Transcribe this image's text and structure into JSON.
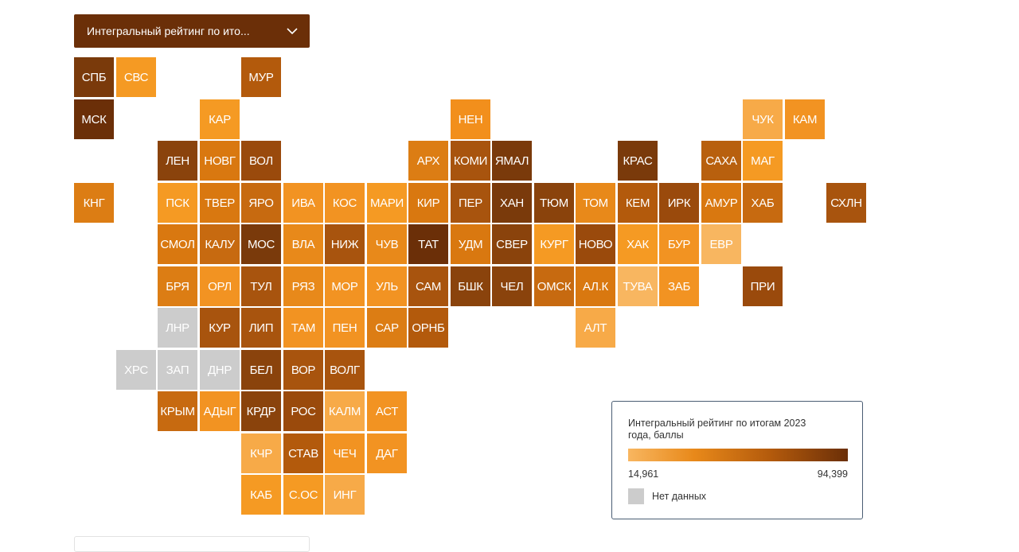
{
  "dropdown": {
    "label": "Интегральный рейтинг по ито..."
  },
  "legend": {
    "title": "Интегральный рейтинг по итогам 2023 года, баллы",
    "min": "14,961",
    "max": "94,399",
    "no_data": "Нет данных",
    "colors": [
      "#f8b660",
      "#e8891a",
      "#b35a0c",
      "#6b2f08"
    ],
    "no_data_color": "#cccccc"
  },
  "map": {
    "regions": [
      {
        "code": "СПБ",
        "row": 0,
        "col": 0,
        "color": "#7a3a0b"
      },
      {
        "code": "СВС",
        "row": 0,
        "col": 1,
        "color": "#f59a23"
      },
      {
        "code": "МУР",
        "row": 0,
        "col": 4,
        "color": "#b35a0c"
      },
      {
        "code": "МСК",
        "row": 1,
        "col": 0,
        "color": "#6b2f08"
      },
      {
        "code": "КАР",
        "row": 1,
        "col": 3,
        "color": "#f59a23"
      },
      {
        "code": "НЕН",
        "row": 1,
        "col": 9,
        "color": "#f28f1c"
      },
      {
        "code": "ЧУК",
        "row": 1,
        "col": 16,
        "color": "#f7aa48"
      },
      {
        "code": "КАМ",
        "row": 1,
        "col": 17,
        "color": "#f29322"
      },
      {
        "code": "ЛЕН",
        "row": 2,
        "col": 2,
        "color": "#8a430c"
      },
      {
        "code": "НОВГ",
        "row": 2,
        "col": 3,
        "color": "#d97810"
      },
      {
        "code": "ВОЛ",
        "row": 2,
        "col": 4,
        "color": "#9a4a0c"
      },
      {
        "code": "АРХ",
        "row": 2,
        "col": 8,
        "color": "#dc7d14"
      },
      {
        "code": "КОМИ",
        "row": 2,
        "col": 9,
        "color": "#a8540e"
      },
      {
        "code": "ЯМАЛ",
        "row": 2,
        "col": 10,
        "color": "#7a3a0b"
      },
      {
        "code": "КРАС",
        "row": 2,
        "col": 13,
        "color": "#7a3a0b"
      },
      {
        "code": "САХА",
        "row": 2,
        "col": 15,
        "color": "#b8600e"
      },
      {
        "code": "МАГ",
        "row": 2,
        "col": 16,
        "color": "#f59a23"
      },
      {
        "code": "КНГ",
        "row": 3,
        "col": 0,
        "color": "#dc7d14"
      },
      {
        "code": "ПСК",
        "row": 3,
        "col": 2,
        "color": "#f59a23"
      },
      {
        "code": "ТВЕР",
        "row": 3,
        "col": 3,
        "color": "#d97810"
      },
      {
        "code": "ЯРО",
        "row": 3,
        "col": 4,
        "color": "#c76a10"
      },
      {
        "code": "ИВА",
        "row": 3,
        "col": 5,
        "color": "#f29322"
      },
      {
        "code": "КОС",
        "row": 3,
        "col": 6,
        "color": "#f29322"
      },
      {
        "code": "МАРИ",
        "row": 3,
        "col": 7,
        "color": "#f59a23"
      },
      {
        "code": "КИР",
        "row": 3,
        "col": 8,
        "color": "#d97810"
      },
      {
        "code": "ПЕР",
        "row": 3,
        "col": 9,
        "color": "#a8540e"
      },
      {
        "code": "ХАН",
        "row": 3,
        "col": 10,
        "color": "#7a3a0b"
      },
      {
        "code": "ТЮМ",
        "row": 3,
        "col": 11,
        "color": "#8a430c"
      },
      {
        "code": "ТОМ",
        "row": 3,
        "col": 12,
        "color": "#e8891a"
      },
      {
        "code": "КЕМ",
        "row": 3,
        "col": 13,
        "color": "#b35a0c"
      },
      {
        "code": "ИРК",
        "row": 3,
        "col": 14,
        "color": "#9a4a0c"
      },
      {
        "code": "АМУР",
        "row": 3,
        "col": 15,
        "color": "#d97810"
      },
      {
        "code": "ХАБ",
        "row": 3,
        "col": 16,
        "color": "#c76a10"
      },
      {
        "code": "СХЛН",
        "row": 3,
        "col": 18,
        "color": "#a8540e"
      },
      {
        "code": "СМОЛ",
        "row": 4,
        "col": 2,
        "color": "#d97810"
      },
      {
        "code": "КАЛУ",
        "row": 4,
        "col": 3,
        "color": "#c76a10"
      },
      {
        "code": "МОС",
        "row": 4,
        "col": 4,
        "color": "#7a3a0b"
      },
      {
        "code": "ВЛА",
        "row": 4,
        "col": 5,
        "color": "#e8891a"
      },
      {
        "code": "НИЖ",
        "row": 4,
        "col": 6,
        "color": "#a8540e"
      },
      {
        "code": "ЧУВ",
        "row": 4,
        "col": 7,
        "color": "#e8891a"
      },
      {
        "code": "ТАТ",
        "row": 4,
        "col": 8,
        "color": "#6b2f08"
      },
      {
        "code": "УДМ",
        "row": 4,
        "col": 9,
        "color": "#d97810"
      },
      {
        "code": "СВЕР",
        "row": 4,
        "col": 10,
        "color": "#8a430c"
      },
      {
        "code": "КУРГ",
        "row": 4,
        "col": 11,
        "color": "#f59a23"
      },
      {
        "code": "НОВО",
        "row": 4,
        "col": 12,
        "color": "#9a4a0c"
      },
      {
        "code": "ХАК",
        "row": 4,
        "col": 13,
        "color": "#f59a23"
      },
      {
        "code": "БУР",
        "row": 4,
        "col": 14,
        "color": "#f29322"
      },
      {
        "code": "ЕВР",
        "row": 4,
        "col": 15,
        "color": "#f8b660"
      },
      {
        "code": "БРЯ",
        "row": 5,
        "col": 2,
        "color": "#dc7d14"
      },
      {
        "code": "ОРЛ",
        "row": 5,
        "col": 3,
        "color": "#f29322"
      },
      {
        "code": "ТУЛ",
        "row": 5,
        "col": 4,
        "color": "#a8540e"
      },
      {
        "code": "РЯЗ",
        "row": 5,
        "col": 5,
        "color": "#e8891a"
      },
      {
        "code": "МОР",
        "row": 5,
        "col": 6,
        "color": "#f29322"
      },
      {
        "code": "УЛЬ",
        "row": 5,
        "col": 7,
        "color": "#f29322"
      },
      {
        "code": "САМ",
        "row": 5,
        "col": 8,
        "color": "#a8540e"
      },
      {
        "code": "БШК",
        "row": 5,
        "col": 9,
        "color": "#8a430c"
      },
      {
        "code": "ЧЕЛ",
        "row": 5,
        "col": 10,
        "color": "#8a430c"
      },
      {
        "code": "ОМСК",
        "row": 5,
        "col": 11,
        "color": "#c76a10"
      },
      {
        "code": "АЛ.К",
        "row": 5,
        "col": 12,
        "color": "#d97810"
      },
      {
        "code": "ТУВА",
        "row": 5,
        "col": 13,
        "color": "#f8b660"
      },
      {
        "code": "ЗАБ",
        "row": 5,
        "col": 14,
        "color": "#f29322"
      },
      {
        "code": "ПРИ",
        "row": 5,
        "col": 16,
        "color": "#9a4a0c"
      },
      {
        "code": "ЛНР",
        "row": 6,
        "col": 2,
        "color": "#cccccc"
      },
      {
        "code": "КУР",
        "row": 6,
        "col": 3,
        "color": "#a8540e"
      },
      {
        "code": "ЛИП",
        "row": 6,
        "col": 4,
        "color": "#a8540e"
      },
      {
        "code": "ТАМ",
        "row": 6,
        "col": 5,
        "color": "#f29322"
      },
      {
        "code": "ПЕН",
        "row": 6,
        "col": 6,
        "color": "#f29322"
      },
      {
        "code": "САР",
        "row": 6,
        "col": 7,
        "color": "#dc7d14"
      },
      {
        "code": "ОРНБ",
        "row": 6,
        "col": 8,
        "color": "#b35a0c"
      },
      {
        "code": "АЛТ",
        "row": 6,
        "col": 12,
        "color": "#f7aa48"
      },
      {
        "code": "ХРС",
        "row": 7,
        "col": 1,
        "color": "#cccccc"
      },
      {
        "code": "ЗАП",
        "row": 7,
        "col": 2,
        "color": "#cccccc"
      },
      {
        "code": "ДНР",
        "row": 7,
        "col": 3,
        "color": "#cccccc"
      },
      {
        "code": "БЕЛ",
        "row": 7,
        "col": 4,
        "color": "#8a430c"
      },
      {
        "code": "ВОР",
        "row": 7,
        "col": 5,
        "color": "#a8540e"
      },
      {
        "code": "ВОЛГ",
        "row": 7,
        "col": 6,
        "color": "#a8540e"
      },
      {
        "code": "КРЫМ",
        "row": 8,
        "col": 2,
        "color": "#c76a10"
      },
      {
        "code": "АДЫГ",
        "row": 8,
        "col": 3,
        "color": "#f29322"
      },
      {
        "code": "КРДР",
        "row": 8,
        "col": 4,
        "color": "#8a430c"
      },
      {
        "code": "РОС",
        "row": 8,
        "col": 5,
        "color": "#9a4a0c"
      },
      {
        "code": "КАЛМ",
        "row": 8,
        "col": 6,
        "color": "#f7aa48"
      },
      {
        "code": "АСТ",
        "row": 8,
        "col": 7,
        "color": "#f29322"
      },
      {
        "code": "КЧР",
        "row": 9,
        "col": 4,
        "color": "#f7aa48"
      },
      {
        "code": "СТАВ",
        "row": 9,
        "col": 5,
        "color": "#b35a0c"
      },
      {
        "code": "ЧЕЧ",
        "row": 9,
        "col": 6,
        "color": "#f29322"
      },
      {
        "code": "ДАГ",
        "row": 9,
        "col": 7,
        "color": "#f29322"
      },
      {
        "code": "КАБ",
        "row": 10,
        "col": 4,
        "color": "#f59a23"
      },
      {
        "code": "С.ОС",
        "row": 10,
        "col": 5,
        "color": "#f59a23"
      },
      {
        "code": "ИНГ",
        "row": 10,
        "col": 6,
        "color": "#f7aa48"
      }
    ]
  }
}
